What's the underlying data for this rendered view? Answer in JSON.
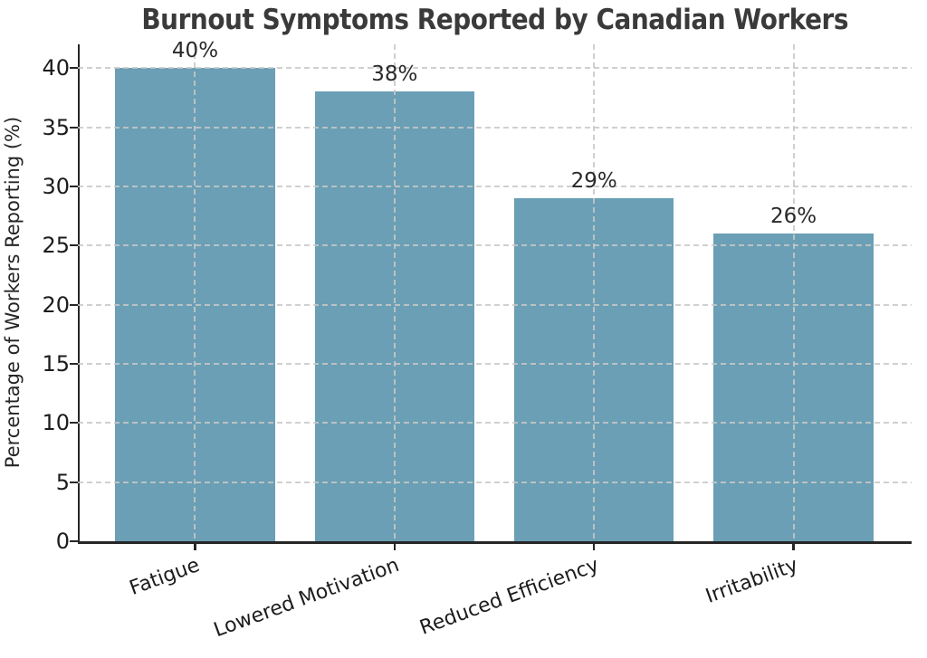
{
  "figure": {
    "background": "#ffffff"
  },
  "chart_data": {
    "type": "bar",
    "title": "Burnout Symptoms Reported by Canadian Workers",
    "categories": [
      "Fatigue",
      "Lowered Motivation",
      "Reduced Efficiency",
      "Irritability"
    ],
    "values": [
      40,
      38,
      29,
      26
    ],
    "bar_labels": [
      "40%",
      "38%",
      "29%",
      "26%"
    ],
    "xlabel": "",
    "ylabel": "Percentage of Workers Reporting (%)",
    "yticks": [
      0,
      5,
      10,
      15,
      20,
      25,
      30,
      35,
      40
    ],
    "ylim": [
      0,
      42
    ],
    "grid": "dashed gridlines on both axes, drawn above bars",
    "legend": "none",
    "colors": {
      "bar": "#6A9FB5",
      "grid": "#CDCDCD",
      "spine": "#262626",
      "tick_text": "#1C1C1C",
      "title_text": "#3A3A3A",
      "background": "#FFFFFF"
    }
  }
}
